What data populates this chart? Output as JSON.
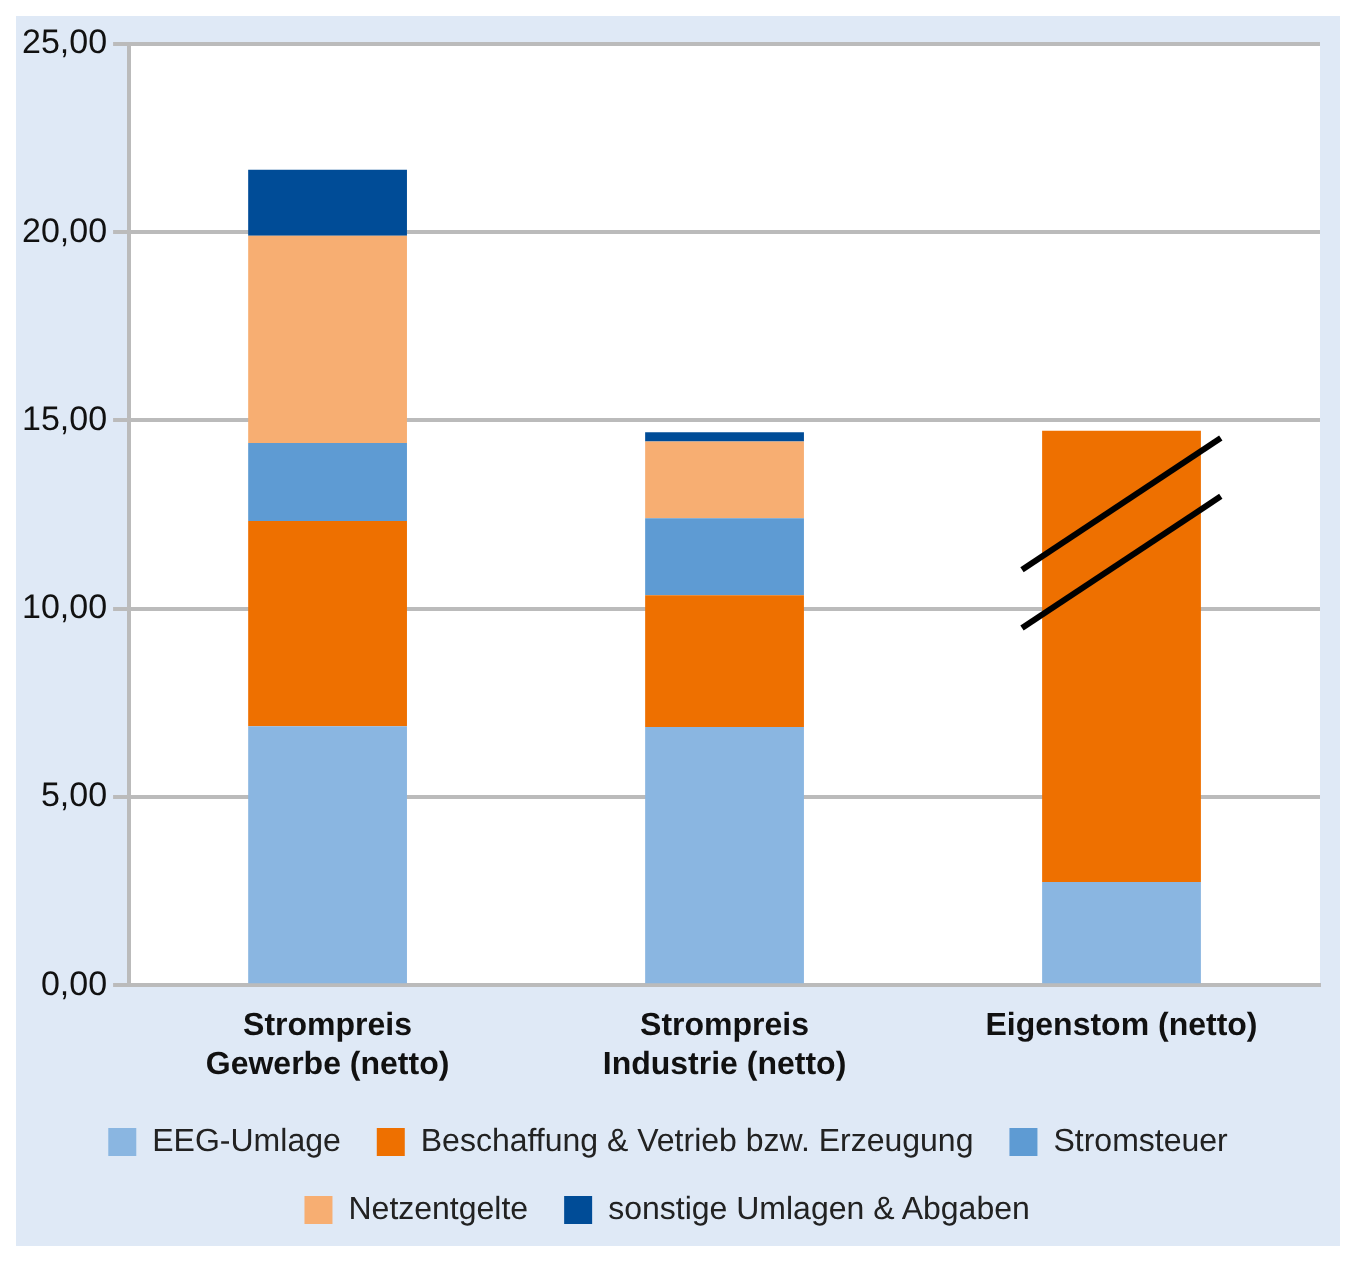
{
  "chart_data": {
    "type": "bar",
    "stacked": true,
    "categories": [
      "Strompreis Gewerbe (netto)",
      "Strompreis Industrie (netto)",
      "Eigenstom (netto)"
    ],
    "series": [
      {
        "name": "EEG-Umlage",
        "color": "#8ab6e1",
        "values": [
          6.88,
          6.86,
          2.74
        ]
      },
      {
        "name": "Beschaffung & Vetrieb bzw. Erzeugung",
        "color": "#ee7000",
        "values": [
          5.45,
          3.5,
          11.99
        ]
      },
      {
        "name": "Stromsteuer",
        "color": "#5e9bd3",
        "values": [
          2.07,
          2.04,
          null
        ]
      },
      {
        "name": "Netzentgelte",
        "color": "#f7ae72",
        "values": [
          5.51,
          2.04,
          null
        ]
      },
      {
        "name": "sonstige Umlagen & Abgaben",
        "color": "#004c97",
        "values": [
          1.75,
          0.25,
          null
        ]
      }
    ],
    "ylim": [
      0,
      25
    ],
    "yticks": [
      {
        "value": 0,
        "label": "0,00"
      },
      {
        "value": 5,
        "label": "5,00"
      },
      {
        "value": 10,
        "label": "10,00"
      },
      {
        "value": 15,
        "label": "15,00"
      },
      {
        "value": 20,
        "label": "20,00"
      },
      {
        "value": 25,
        "label": "25,00"
      }
    ],
    "grid": "y",
    "legend": "bottom"
  }
}
